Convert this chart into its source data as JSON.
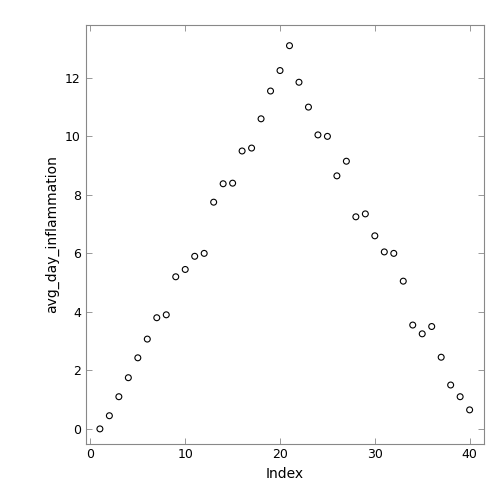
{
  "x": [
    1,
    2,
    3,
    4,
    5,
    6,
    7,
    8,
    9,
    10,
    11,
    12,
    13,
    14,
    15,
    16,
    17,
    18,
    19,
    20,
    21,
    22,
    23,
    24,
    25,
    26,
    27,
    28,
    29,
    30,
    31,
    32,
    33,
    34,
    35,
    36,
    37,
    38,
    39,
    40
  ],
  "y": [
    0.0,
    0.45,
    1.1,
    1.75,
    2.43,
    3.07,
    3.8,
    3.9,
    5.2,
    5.45,
    5.9,
    6.0,
    7.75,
    8.38,
    8.4,
    9.5,
    9.6,
    10.6,
    11.55,
    12.25,
    13.1,
    11.85,
    11.0,
    10.05,
    10.0,
    8.65,
    9.15,
    7.25,
    7.35,
    6.6,
    6.05,
    6.0,
    5.05,
    3.55,
    3.25,
    3.5,
    2.45,
    1.5,
    1.1,
    0.65
  ],
  "xlabel": "Index",
  "ylabel": "avg_day_inflammation",
  "xlim": [
    -0.5,
    41.5
  ],
  "ylim": [
    -0.5,
    13.8
  ],
  "xticks": [
    0,
    10,
    20,
    30,
    40
  ],
  "yticks": [
    0,
    2,
    4,
    6,
    8,
    10,
    12
  ],
  "marker_size": 18,
  "marker_facecolor": "none",
  "marker_edgecolor": "#000000",
  "marker_linewidth": 0.8,
  "spine_color": "#888888",
  "tick_label_fontsize": 9,
  "axis_label_fontsize": 10,
  "bg_color": "#ffffff"
}
